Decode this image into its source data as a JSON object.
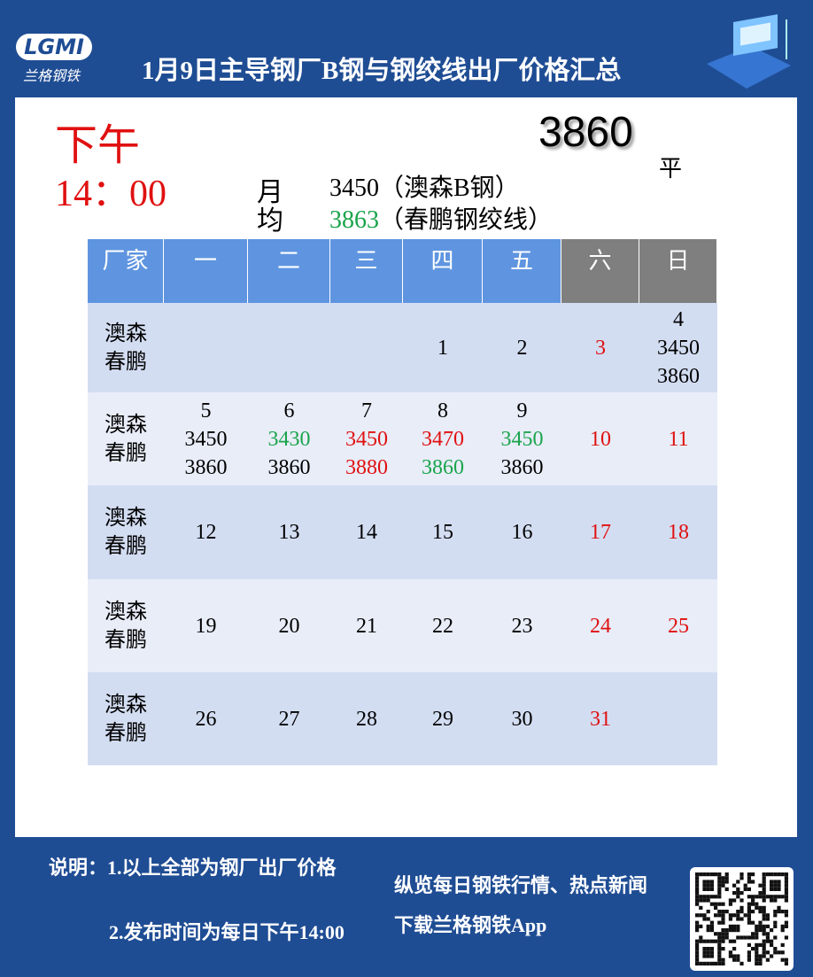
{
  "header": {
    "logo_mark": "LGMI",
    "logo_name": "兰格钢铁",
    "title": "1月9日主导钢厂B钢与钢绞线出厂价格汇总"
  },
  "summary": {
    "period": "下午",
    "time": "14：00",
    "price": "3860",
    "trend": "平",
    "avg_label": [
      "月",
      "均"
    ],
    "avg_lines": [
      [
        {
          "text": "3450"
        },
        {
          "text": "（澳森B钢）"
        }
      ],
      [
        {
          "text": "3863",
          "color": "#1aa44b"
        },
        {
          "text": "（春鹏钢绞线）"
        }
      ]
    ]
  },
  "table": {
    "header": [
      "厂家",
      "一",
      "二",
      "三",
      "四",
      "五",
      "六",
      "日"
    ],
    "rows": [
      {
        "label": [
          "澳森",
          "春鹏"
        ],
        "cells": [
          [],
          [],
          [],
          [
            {
              "text": "1"
            }
          ],
          [
            {
              "text": "2"
            }
          ],
          [
            {
              "text": "3",
              "color": "#e01010"
            }
          ],
          [
            {
              "text": "4"
            },
            {
              "text": "3450"
            },
            {
              "text": "3860"
            }
          ]
        ]
      },
      {
        "label": [
          "澳森",
          "春鹏"
        ],
        "cells": [
          [
            {
              "text": "5"
            },
            {
              "text": "3450"
            },
            {
              "text": "3860"
            }
          ],
          [
            {
              "text": "6"
            },
            {
              "text": "3430",
              "color": "#1aa44b"
            },
            {
              "text": "3860"
            }
          ],
          [
            {
              "text": "7"
            },
            {
              "text": "3450",
              "color": "#e01010"
            },
            {
              "text": "3880",
              "color": "#e01010"
            }
          ],
          [
            {
              "text": "8"
            },
            {
              "text": "3470",
              "color": "#e01010"
            },
            {
              "text": "3860",
              "color": "#1aa44b"
            }
          ],
          [
            {
              "text": "9"
            },
            {
              "text": "3450",
              "color": "#1aa44b"
            },
            {
              "text": "3860"
            }
          ],
          [
            {
              "text": "10",
              "color": "#e01010"
            }
          ],
          [
            {
              "text": "11",
              "color": "#e01010"
            }
          ]
        ]
      },
      {
        "label": [
          "澳森",
          "春鹏"
        ],
        "cells": [
          [
            {
              "text": "12"
            }
          ],
          [
            {
              "text": "13"
            }
          ],
          [
            {
              "text": "14"
            }
          ],
          [
            {
              "text": "15"
            }
          ],
          [
            {
              "text": "16"
            }
          ],
          [
            {
              "text": "17",
              "color": "#e01010"
            }
          ],
          [
            {
              "text": "18",
              "color": "#e01010"
            }
          ]
        ]
      },
      {
        "label": [
          "澳森",
          "春鹏"
        ],
        "cells": [
          [
            {
              "text": "19"
            }
          ],
          [
            {
              "text": "20"
            }
          ],
          [
            {
              "text": "21"
            }
          ],
          [
            {
              "text": "22"
            }
          ],
          [
            {
              "text": "23"
            }
          ],
          [
            {
              "text": "24",
              "color": "#e01010"
            }
          ],
          [
            {
              "text": "25",
              "color": "#e01010"
            }
          ]
        ]
      },
      {
        "label": [
          "澳森",
          "春鹏"
        ],
        "cells": [
          [
            {
              "text": "26"
            }
          ],
          [
            {
              "text": "27"
            }
          ],
          [
            {
              "text": "28"
            }
          ],
          [
            {
              "text": "29"
            }
          ],
          [
            {
              "text": "30"
            }
          ],
          [
            {
              "text": "31",
              "color": "#e01010"
            }
          ],
          []
        ]
      }
    ]
  },
  "footer": {
    "note_1": "说明：1.以上全部为钢厂出厂价格",
    "note_2": "2.发布时间为每日下午14:00",
    "promo_1": "纵览每日钢铁行情、热点新闻",
    "promo_2": "下载兰格钢铁App"
  }
}
